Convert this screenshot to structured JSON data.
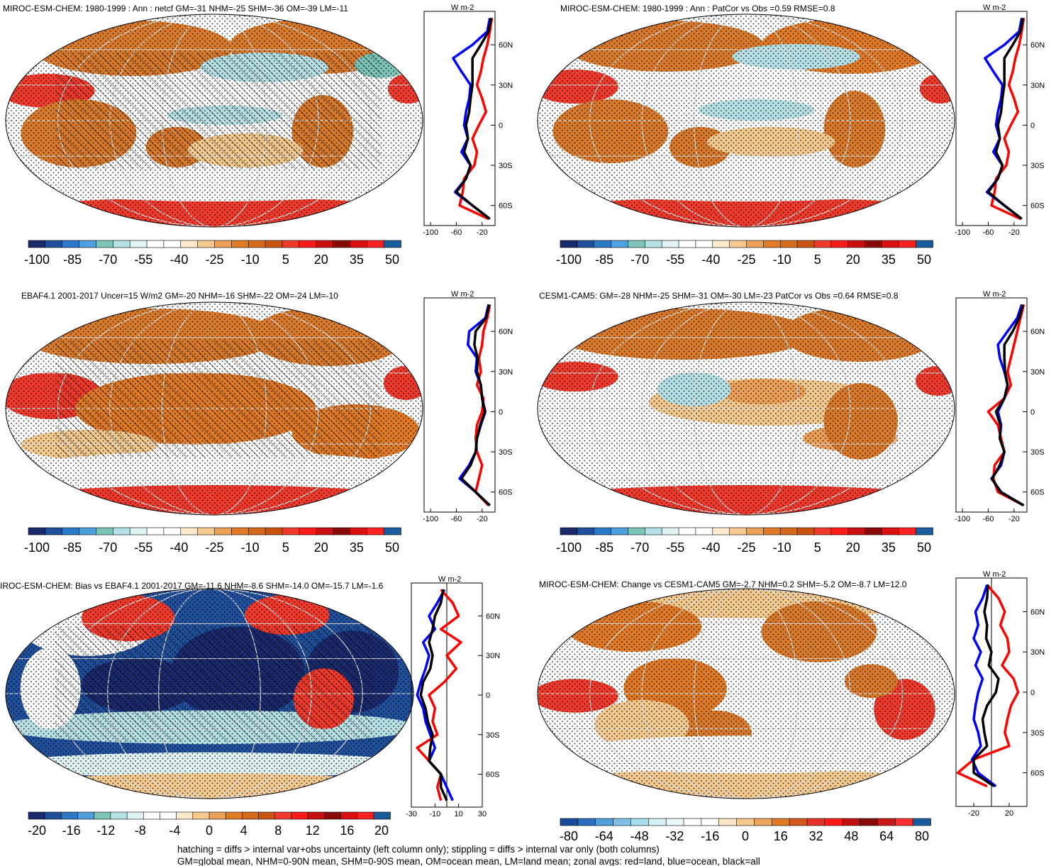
{
  "chart_data": [
    {
      "type": "heatmap",
      "title": "MIROC-ESM-CHEM: 1980-1999 : Ann : netcf GM=-31 NHM=-25 SHM=-36 OM=-39 LM=-11",
      "hatching": true,
      "colorbar": {
        "ticks": [
          "-100",
          "-85",
          "-70",
          "-55",
          "-40",
          "-25",
          "-10",
          "5",
          "20",
          "35",
          "50"
        ]
      },
      "profile": {
        "units": "W m-2",
        "xticks": [
          "-100",
          "-60",
          "-20"
        ],
        "yticks": [
          "60N",
          "30N",
          "0",
          "30S",
          "60S"
        ],
        "xlim": [
          -110,
          0
        ],
        "ylim": [
          -75,
          85
        ],
        "series": [
          {
            "name": "red=land",
            "color": "#ff0000",
            "lat": [
              80,
              70,
              60,
              50,
              40,
              30,
              20,
              10,
              0,
              -10,
              -20,
              -30,
              -40,
              -50,
              -60,
              -70
            ],
            "values": [
              -5,
              -8,
              -12,
              -18,
              -22,
              -28,
              -20,
              -14,
              -25,
              -35,
              -28,
              -32,
              -48,
              -50,
              -55,
              -10
            ]
          },
          {
            "name": "blue=ocean",
            "color": "#0000ff",
            "lat": [
              80,
              70,
              60,
              50,
              40,
              30,
              20,
              10,
              0,
              -10,
              -20,
              -30,
              -40,
              -50,
              -60,
              -70
            ],
            "values": [
              -8,
              -12,
              -35,
              -65,
              -52,
              -38,
              -40,
              -45,
              -48,
              -42,
              -52,
              -38,
              -45,
              -62,
              -35,
              -8
            ]
          },
          {
            "name": "black=all",
            "color": "#000000",
            "lat": [
              80,
              70,
              60,
              50,
              40,
              30,
              20,
              10,
              0,
              -10,
              -20,
              -30,
              -40,
              -50,
              -60,
              -70
            ],
            "values": [
              -6,
              -10,
              -22,
              -35,
              -35,
              -35,
              -38,
              -40,
              -45,
              -42,
              -48,
              -38,
              -45,
              -60,
              -35,
              -8
            ]
          }
        ]
      }
    },
    {
      "type": "heatmap",
      "title": "MIROC-ESM-CHEM: 1980-1999 : Ann : PatCor vs Obs =0.59 RMSE=0.8",
      "hatching": false,
      "colorbar": {
        "ticks": [
          "-100",
          "-85",
          "-70",
          "-55",
          "-40",
          "-25",
          "-10",
          "5",
          "20",
          "35",
          "50"
        ]
      },
      "profile": {
        "units": "W m-2",
        "xticks": [
          "-100",
          "-60",
          "-20"
        ],
        "yticks": [
          "60N",
          "30N",
          "0",
          "30S",
          "60S"
        ],
        "xlim": [
          -110,
          0
        ],
        "ylim": [
          -75,
          85
        ],
        "series": [
          {
            "name": "red=land",
            "color": "#ff0000",
            "lat": [
              80,
              70,
              60,
              50,
              40,
              30,
              20,
              10,
              0,
              -10,
              -20,
              -30,
              -40,
              -50,
              -60,
              -70
            ],
            "values": [
              -5,
              -8,
              -12,
              -18,
              -22,
              -28,
              -20,
              -14,
              -25,
              -35,
              -28,
              -32,
              -48,
              -50,
              -55,
              -10
            ]
          },
          {
            "name": "blue=ocean",
            "color": "#0000ff",
            "lat": [
              80,
              70,
              60,
              50,
              40,
              30,
              20,
              10,
              0,
              -10,
              -20,
              -30,
              -40,
              -50,
              -60,
              -70
            ],
            "values": [
              -8,
              -12,
              -35,
              -65,
              -52,
              -38,
              -40,
              -45,
              -48,
              -42,
              -52,
              -38,
              -45,
              -62,
              -35,
              -8
            ]
          },
          {
            "name": "black=all",
            "color": "#000000",
            "lat": [
              80,
              70,
              60,
              50,
              40,
              30,
              20,
              10,
              0,
              -10,
              -20,
              -30,
              -40,
              -50,
              -60,
              -70
            ],
            "values": [
              -6,
              -10,
              -22,
              -35,
              -35,
              -35,
              -38,
              -40,
              -45,
              -42,
              -48,
              -38,
              -45,
              -60,
              -35,
              -8
            ]
          }
        ]
      }
    },
    {
      "type": "heatmap",
      "title": "EBAF4.1 2001-2017 Uncer=15 W/m2 GM=-20 NHM=-16 SHM=-22 OM=-24 LM=-10",
      "hatching": true,
      "colorbar": {
        "ticks": [
          "-100",
          "-85",
          "-70",
          "-55",
          "-40",
          "-25",
          "-10",
          "5",
          "20",
          "35",
          "50"
        ]
      },
      "profile": {
        "units": "W m-2",
        "xticks": [
          "-100",
          "-60",
          "-20"
        ],
        "yticks": [
          "60N",
          "30N",
          "0",
          "30S",
          "60S"
        ],
        "xlim": [
          -110,
          0
        ],
        "ylim": [
          -75,
          85
        ],
        "series": [
          {
            "name": "red=land",
            "color": "#ff0000",
            "lat": [
              80,
              70,
              60,
              50,
              40,
              30,
              20,
              10,
              0,
              -10,
              -20,
              -30,
              -40,
              -50,
              -60,
              -70
            ],
            "values": [
              -8,
              -12,
              -18,
              -20,
              -25,
              -22,
              -28,
              -18,
              -20,
              -28,
              -30,
              -28,
              -20,
              -25,
              -30,
              -10
            ]
          },
          {
            "name": "blue=ocean",
            "color": "#0000ff",
            "lat": [
              80,
              70,
              60,
              50,
              40,
              30,
              20,
              10,
              0,
              -10,
              -20,
              -30,
              -40,
              -50,
              -60,
              -70
            ],
            "values": [
              -10,
              -15,
              -40,
              -42,
              -28,
              -30,
              -22,
              -20,
              -15,
              -22,
              -28,
              -30,
              -40,
              -55,
              -30,
              -8
            ]
          },
          {
            "name": "black=all",
            "color": "#000000",
            "lat": [
              80,
              70,
              60,
              50,
              40,
              30,
              20,
              10,
              0,
              -10,
              -20,
              -30,
              -40,
              -50,
              -60,
              -70
            ],
            "values": [
              -9,
              -14,
              -30,
              -32,
              -27,
              -28,
              -22,
              -20,
              -16,
              -23,
              -28,
              -30,
              -38,
              -52,
              -30,
              -8
            ]
          }
        ]
      }
    },
    {
      "type": "heatmap",
      "title": "CESM1-CAM5: GM=-28 NHM=-25 SHM=-31 OM=-30 LM=-23 PatCor vs Obs =0.64 RMSE=0.8",
      "hatching": false,
      "colorbar": {
        "ticks": [
          "-100",
          "-85",
          "-70",
          "-55",
          "-40",
          "-25",
          "-10",
          "5",
          "20",
          "35",
          "50"
        ]
      },
      "profile": {
        "units": "W m-2",
        "xticks": [
          "-100",
          "-60",
          "-20"
        ],
        "yticks": [
          "60N",
          "30N",
          "0",
          "30S",
          "60S"
        ],
        "xlim": [
          -110,
          0
        ],
        "ylim": [
          -75,
          85
        ],
        "series": [
          {
            "name": "red=land",
            "color": "#ff0000",
            "lat": [
              80,
              70,
              60,
              50,
              40,
              30,
              20,
              10,
              0,
              -10,
              -20,
              -30,
              -40,
              -50,
              -60,
              -70
            ],
            "values": [
              -5,
              -10,
              -15,
              -20,
              -25,
              -30,
              -25,
              -35,
              -60,
              -45,
              -40,
              -35,
              -50,
              -52,
              -45,
              -5
            ]
          },
          {
            "name": "blue=ocean",
            "color": "#0000ff",
            "lat": [
              80,
              70,
              60,
              50,
              40,
              30,
              20,
              10,
              0,
              -10,
              -20,
              -30,
              -40,
              -50,
              -60,
              -70
            ],
            "values": [
              -8,
              -15,
              -30,
              -45,
              -42,
              -35,
              -30,
              -35,
              -45,
              -40,
              -42,
              -35,
              -40,
              -55,
              -40,
              -5
            ]
          },
          {
            "name": "black=all",
            "color": "#000000",
            "lat": [
              80,
              70,
              60,
              50,
              40,
              30,
              20,
              10,
              0,
              -10,
              -20,
              -30,
              -40,
              -50,
              -60,
              -70
            ],
            "values": [
              -6,
              -12,
              -22,
              -35,
              -35,
              -34,
              -30,
              -35,
              -48,
              -41,
              -42,
              -35,
              -42,
              -54,
              -41,
              -5
            ]
          }
        ]
      }
    },
    {
      "type": "heatmap",
      "title": "IROC-ESM-CHEM: Bias vs EBAF4.1 2001-2017 GM=-11.6 NHM=-8.6 SHM=-14.0 OM=-15.7 LM=-1.6",
      "hatching": true,
      "colorbar": {
        "ticks": [
          "-20",
          "-16",
          "-12",
          "-8",
          "-4",
          "0",
          "4",
          "8",
          "12",
          "16",
          "20"
        ]
      },
      "profile": {
        "units": "W m-2",
        "xticks": [
          "-30",
          "-10",
          "10",
          "30"
        ],
        "yticks": [
          "60N",
          "30N",
          "0",
          "30S",
          "60S"
        ],
        "xlim": [
          -30,
          30
        ],
        "ylim": [
          -85,
          85
        ],
        "series": [
          {
            "name": "red=land",
            "color": "#ff0000",
            "lat": [
              80,
              70,
              60,
              50,
              40,
              30,
              20,
              10,
              0,
              -10,
              -20,
              -30,
              -40,
              -50,
              -60,
              -70,
              -80
            ],
            "values": [
              -5,
              5,
              10,
              -5,
              12,
              0,
              8,
              -2,
              -15,
              -10,
              -12,
              -8,
              -25,
              -15,
              -5,
              -8,
              -5
            ]
          },
          {
            "name": "blue=ocean",
            "color": "#0000ff",
            "lat": [
              80,
              70,
              60,
              50,
              40,
              30,
              20,
              10,
              0,
              -10,
              -20,
              -30,
              -40,
              -50,
              -60,
              -70,
              -80
            ],
            "values": [
              -2,
              -8,
              -15,
              -10,
              -20,
              -15,
              -18,
              -22,
              -25,
              -20,
              -18,
              -14,
              -10,
              -15,
              -5,
              0,
              5
            ]
          },
          {
            "name": "black=all",
            "color": "#000000",
            "lat": [
              80,
              70,
              60,
              50,
              40,
              30,
              20,
              10,
              0,
              -10,
              -20,
              -30,
              -40,
              -50,
              -60,
              -70,
              -80
            ],
            "values": [
              -3,
              -5,
              -10,
              -12,
              -15,
              -12,
              -14,
              -20,
              -22,
              -18,
              -16,
              -12,
              -14,
              -15,
              -5,
              -5,
              0
            ]
          }
        ]
      }
    },
    {
      "type": "heatmap",
      "title": "MIROC-ESM-CHEM: Change vs CESM1-CAM5 GM=-2.7 NHM=0.2 SHM=-5.2 OM=-8.7 LM=12.0",
      "hatching": false,
      "colorbar": {
        "ticks": [
          "-80",
          "-64",
          "-48",
          "-32",
          "-16",
          "0",
          "16",
          "32",
          "48",
          "64",
          "80"
        ]
      },
      "profile": {
        "units": "W m-2",
        "xticks": [
          "-20",
          "20"
        ],
        "yticks": [
          "60N",
          "30N",
          "0",
          "30S",
          "60S"
        ],
        "xlim": [
          -40,
          40
        ],
        "ylim": [
          -85,
          85
        ],
        "series": [
          {
            "name": "red=land",
            "color": "#ff0000",
            "lat": [
              80,
              70,
              60,
              50,
              40,
              30,
              20,
              10,
              0,
              -10,
              -20,
              -30,
              -40,
              -50,
              -60,
              -70
            ],
            "values": [
              -5,
              8,
              15,
              10,
              18,
              20,
              12,
              25,
              30,
              22,
              18,
              15,
              20,
              -20,
              -38,
              -5
            ]
          },
          {
            "name": "blue=ocean",
            "color": "#0000ff",
            "lat": [
              80,
              70,
              60,
              50,
              40,
              30,
              20,
              10,
              0,
              -10,
              -20,
              -30,
              -40,
              -50,
              -60,
              -70
            ],
            "values": [
              -5,
              -10,
              -18,
              -15,
              -20,
              -12,
              -18,
              -10,
              -15,
              -18,
              -20,
              -15,
              -12,
              -22,
              -15,
              5
            ]
          },
          {
            "name": "black=all",
            "color": "#000000",
            "lat": [
              80,
              70,
              60,
              50,
              40,
              30,
              20,
              10,
              0,
              -10,
              -20,
              -30,
              -40,
              -50,
              -60,
              -70
            ],
            "values": [
              -4,
              -5,
              -8,
              -5,
              -6,
              0,
              -3,
              8,
              5,
              -5,
              -10,
              -8,
              -5,
              -20,
              -20,
              3
            ]
          }
        ]
      }
    }
  ],
  "footer": {
    "line1": "hatching = diffs > internal var+obs uncertainty (left column only); stippling = diffs > internal var only (both columns)",
    "line2": "GM=global mean, NHM=0-90N mean, SHM=0-90S mean, OM=ocean mean, LM=land mean; zonal avgs: red=land, blue=ocean, black=all"
  },
  "colors": {
    "cmap_diverging": [
      "#1a2a6c",
      "#20509b",
      "#2c79c7",
      "#4e9fdc",
      "#7cc3b8",
      "#b4e0e6",
      "#e0f4f4",
      "#ffffff",
      "#ffffff",
      "#fdeacc",
      "#f6c98e",
      "#eda058",
      "#e07a24",
      "#d56a1c",
      "#c85410",
      "#ef3a2c",
      "#ff1a1a",
      "#c81010",
      "#8a0a0a",
      "#dd1010",
      "#ff2020",
      "#1a5c9c"
    ],
    "cmap_change": [
      "#1a4a9c",
      "#2c6fc2",
      "#4e9fdc",
      "#7fbfe8",
      "#a8dcef",
      "#d4f0f5",
      "#eaf8fa",
      "#ffffff",
      "#ffffff",
      "#fde6c4",
      "#f6c88e",
      "#eda45c",
      "#e07a24",
      "#d4581c",
      "#e53128",
      "#ff1a1a",
      "#c01010",
      "#8a0a0a",
      "#c81818",
      "#ff3030",
      "#1a5c9c"
    ]
  }
}
